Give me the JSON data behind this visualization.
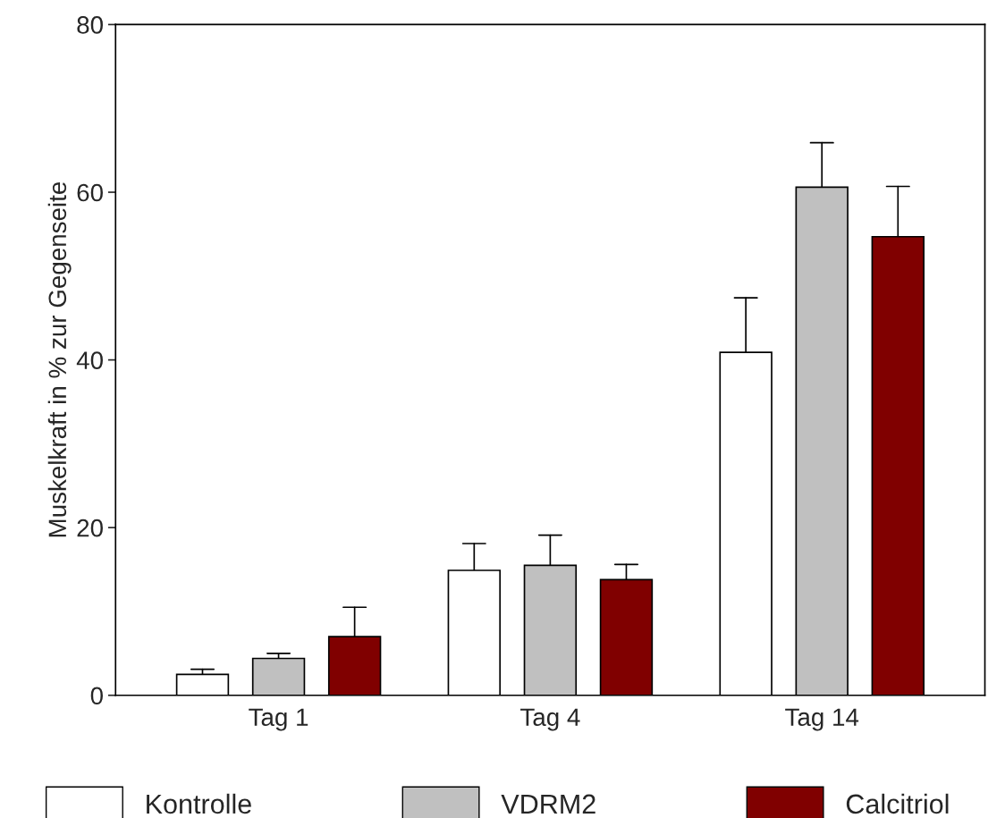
{
  "chart_data": {
    "type": "bar",
    "ylabel": "Muskelkraft in % zur Gegenseite",
    "categories": [
      "Tag 1",
      "Tag 4",
      "Tag 14"
    ],
    "series": [
      {
        "name": "Kontrolle",
        "color": "#ffffff",
        "values": [
          2.5,
          14.9,
          40.9
        ],
        "errors": [
          [
            2.5,
            3.1
          ],
          [
            14.9,
            18.1
          ],
          [
            40.9,
            47.4
          ]
        ]
      },
      {
        "name": "VDRM2",
        "color": "#c0c0c0",
        "values": [
          4.4,
          15.5,
          60.6
        ],
        "errors": [
          [
            4.4,
            5.0
          ],
          [
            15.5,
            19.1
          ],
          [
            60.6,
            65.9
          ]
        ]
      },
      {
        "name": "Calcitriol",
        "color": "#800000",
        "values": [
          7.0,
          13.8,
          54.7
        ],
        "errors": [
          [
            7.0,
            10.5
          ],
          [
            13.8,
            15.6
          ],
          [
            54.7,
            60.7
          ]
        ]
      }
    ],
    "ylim": [
      0,
      80
    ],
    "yticks": [
      0,
      20,
      40,
      60,
      80
    ],
    "grid": false,
    "legend": "bottom"
  }
}
